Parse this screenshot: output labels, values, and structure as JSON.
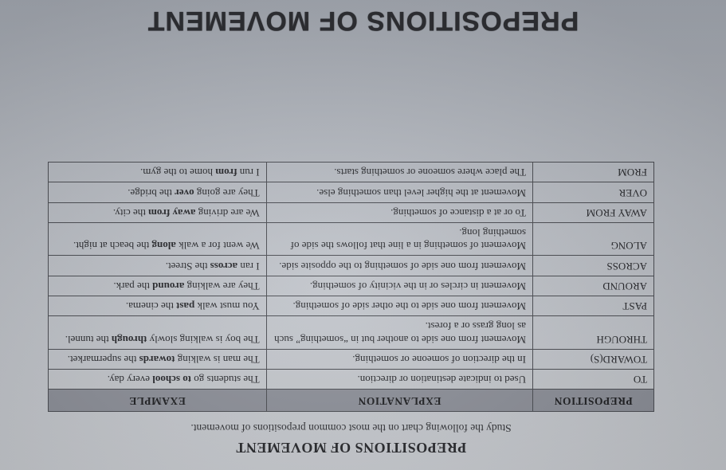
{
  "heading": {
    "title": "PREPOSITIONS OF MOVEMENT",
    "subtitle": "Study the following chart on the most common prepositions of movement."
  },
  "table": {
    "headers": {
      "preposition": "PREPOSITION",
      "explanation": "EXPLANATION",
      "example": "EXAMPLE"
    },
    "rows": [
      {
        "prep": "TO",
        "explanation": "Used to indicate destination or direction.",
        "example_pre": "The students go ",
        "example_bold": "to school",
        "example_post": " every day."
      },
      {
        "prep": "TOWARD(S)",
        "explanation": "In the direction of someone or something.",
        "example_pre": "The man is walking ",
        "example_bold": "towards",
        "example_post": " the supermarket."
      },
      {
        "prep": "THROUGH",
        "explanation": "Movement from one side to another but in “something” such as long grass or a forest.",
        "example_pre": "The boy is walking slowly ",
        "example_bold": "through",
        "example_post": " the tunnel."
      },
      {
        "prep": "PAST",
        "explanation": "Movement from one side to the other side of something.",
        "example_pre": "You must walk ",
        "example_bold": "past",
        "example_post": " the cinema."
      },
      {
        "prep": "AROUND",
        "explanation": "Movement in circles or in the vicinity of something.",
        "example_pre": "They are walking ",
        "example_bold": "around",
        "example_post": " the park."
      },
      {
        "prep": "ACROSS",
        "explanation": "Movement from one side of something to the opposite side.",
        "example_pre": "I ran ",
        "example_bold": "across",
        "example_post": " the Street."
      },
      {
        "prep": "ALONG",
        "explanation": "Movement of something in a line that follows the side of something long.",
        "example_pre": "We went for a walk ",
        "example_bold": "along",
        "example_post": " the beach at night."
      },
      {
        "prep": "AWAY FROM",
        "explanation": "To or at a distance of something.",
        "example_pre": "We are driving ",
        "example_bold": "away from",
        "example_post": " the city."
      },
      {
        "prep": "OVER",
        "explanation": "Movement at the higher level than something else.",
        "example_pre": "They are going ",
        "example_bold": "over",
        "example_post": " the bridge."
      },
      {
        "prep": "FROM",
        "explanation": "The place where someone or something starts.",
        "example_pre": "I run ",
        "example_bold": "from",
        "example_post": " home to the gym."
      }
    ]
  },
  "bottom_title": "PREPOSITIONS OF MOVEMENT",
  "style": {
    "page_bg_top": "#c9ccd1",
    "page_bg_bottom": "#a9aeb7",
    "border_color": "#4a4c52",
    "header_bg": "#8d9099",
    "text_color": "#26272b",
    "heading_fontsize_pt": 13,
    "body_fontsize_pt": 10,
    "bottom_title_fontsize_pt": 26,
    "col_widths_pct": [
      20,
      44,
      36
    ]
  }
}
